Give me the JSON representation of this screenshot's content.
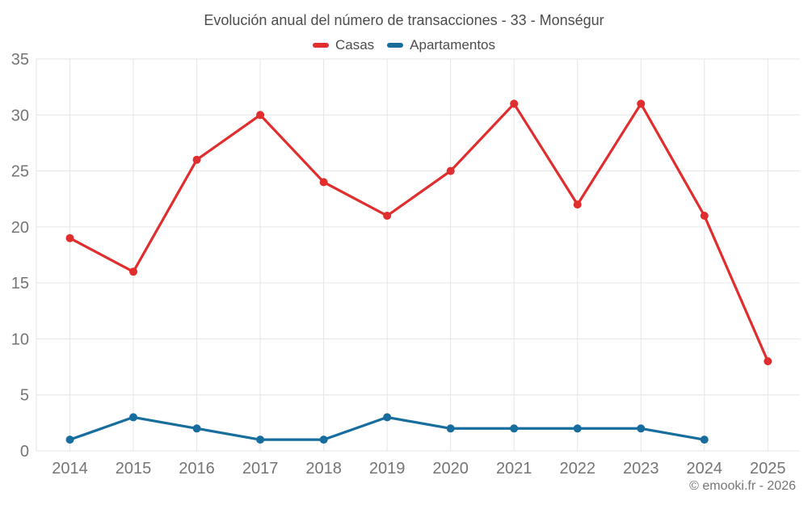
{
  "chart": {
    "title": "Evolución anual del número de transacciones - 33 - Monségur",
    "footer": "© emooki.fr - 2026"
  },
  "chart_data": {
    "type": "line",
    "title": "Evolución anual del número de transacciones - 33 - Monségur",
    "categories": [
      "2014",
      "2015",
      "2016",
      "2017",
      "2018",
      "2019",
      "2020",
      "2021",
      "2022",
      "2023",
      "2024",
      "2025"
    ],
    "series": [
      {
        "name": "Casas",
        "color": "#e02d2d",
        "values": [
          19,
          16,
          26,
          30,
          24,
          21,
          25,
          31,
          22,
          31,
          21,
          8
        ]
      },
      {
        "name": "Apartamentos",
        "color": "#176d9e",
        "values": [
          1,
          3,
          2,
          1,
          1,
          3,
          2,
          2,
          2,
          2,
          1,
          null
        ]
      }
    ],
    "xlabel": "",
    "ylabel": "",
    "ylim": [
      0,
      35
    ],
    "ytick_step": 5,
    "yticks": [
      0,
      5,
      10,
      15,
      20,
      25,
      30,
      35
    ],
    "grid": "on",
    "gridline_color": "#e6e6e6",
    "axis_label_color": "#757575",
    "legend_position": "top",
    "marker": "circle"
  }
}
